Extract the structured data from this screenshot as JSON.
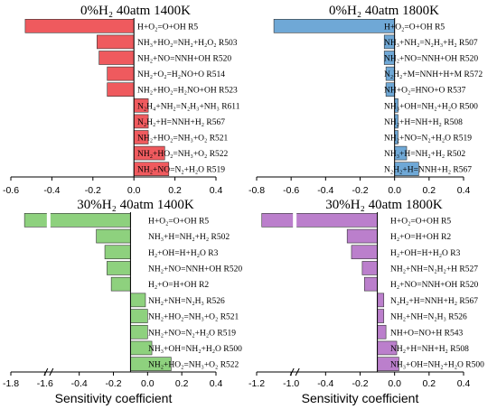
{
  "chart_data": [
    {
      "type": "bar",
      "orientation": "horizontal",
      "title": "0%H₂ 40atm 1400K",
      "color": "#ef5a5e",
      "xlim": [
        -0.6,
        0.4
      ],
      "xticks": [
        "-0.6",
        "-0.4",
        "-0.2",
        "0.0",
        "0.2",
        "0.4"
      ],
      "categories": [
        "H+O₂=O+OH R5",
        "NH₃+HO₂=NH₂+H₂O₂ R503",
        "NH₂+NO=NNH+OH R520",
        "NH₂+O₂=H₂NO+O R514",
        "NH₂+HO₂=H₂NO+OH R523",
        "N₂H₄+NH₂=N₂H₃+NH₃ R611",
        "N₂H₂+H=NNH+H₂ R567",
        "NH₂+HO₂=NH₃+O₂ R521",
        "NH₂+HO₂=NH₃+O₂ R522",
        "NH₂+NO=N₂+H₂O R519"
      ],
      "values": [
        -0.53,
        -0.18,
        -0.17,
        -0.13,
        -0.13,
        0.07,
        0.07,
        0.07,
        0.15,
        0.17
      ]
    },
    {
      "type": "bar",
      "orientation": "horizontal",
      "title": "0%H₂ 40atm 1800K",
      "color": "#6fa8d6",
      "xlim": [
        -0.8,
        0.4
      ],
      "xticks": [
        "-0.8",
        "-0.6",
        "-0.4",
        "-0.2",
        "0.0",
        "0.2",
        "0.4"
      ],
      "categories": [
        "H+O₂=O+OH R5",
        "NH₃+NH₂=N₂H₃+H₂ R507",
        "NH₂+NO=NNH+OH R520",
        "N₂H₂+M=NNH+H+M R572",
        "NH+O₂=HNO+O R537",
        "NH₃+OH=NH₂+H₂O R500",
        "NH₂+H=NH+H₂ R508",
        "NH₂+NO=N₂+H₂O R519",
        "NH₃+H=NH₂+H₂ R502",
        "N₂H₂+H=NNH+H₂ R567"
      ],
      "values": [
        -0.7,
        -0.06,
        -0.06,
        -0.05,
        -0.05,
        0.02,
        0.02,
        0.02,
        0.07,
        0.14
      ]
    },
    {
      "type": "bar",
      "orientation": "horizontal",
      "title": "30%H₂ 40atm 1400K",
      "color": "#8ed17e",
      "xlim": [
        -1.8,
        0.4
      ],
      "axis_break": [
        -1.6,
        -0.4
      ],
      "xticks": [
        "-1.8",
        "-1.6",
        "-0.4",
        "-0.2",
        "0.0",
        "0.2",
        "0.4"
      ],
      "categories": [
        "H+O₂=O+OH R5",
        "NH₃+H=NH₂+H₂ R502",
        "H₂+OH=H+H₂O R3",
        "NH₂+NO=NNH+OH R520",
        "H₂+O=H+OH R2",
        "NH₂+NH=N₂H₃ R526",
        "NH₂+HO₂=NH₃+O₂ R521",
        "NH₂+NO=N₂+H₂O R519",
        "NH₃+OH=NH₂+H₂O R500",
        "NH₂+HO₂=NH₃+O₂ R522"
      ],
      "values": [
        -1.72,
        -0.16,
        -0.12,
        -0.11,
        -0.09,
        0.07,
        0.08,
        0.08,
        0.1,
        0.19
      ]
    },
    {
      "type": "bar",
      "orientation": "horizontal",
      "title": "30%H₂ 40atm 1800K",
      "color": "#bb7fcc",
      "xlim": [
        -1.2,
        0.4
      ],
      "axis_break": [
        -1.0,
        -0.4
      ],
      "xticks": [
        "-1.2",
        "-1.0",
        "-0.4",
        "-0.2",
        "0.0",
        "0.2",
        "0.4"
      ],
      "categories": [
        "H+O₂=O+OH R5",
        "H₂+O=H+OH R2",
        "H₂+OH=H+H₂O R3",
        "NH₂+NH=N₂H₂+H R527",
        "H₂+NO=NNH+OH R520",
        "N₂H₂+H=NNH+H₂ R567",
        "NH₂+NH=N₂H₃ R526",
        "NH+O=NO+H R543",
        "NH₂+H=NH+H₂ R508",
        "NH₃+OH=NH₂+H₂O R500"
      ],
      "values": [
        -1.17,
        -0.14,
        -0.12,
        -0.07,
        -0.06,
        0.03,
        0.03,
        0.04,
        0.09,
        0.1
      ]
    }
  ],
  "xlabel": "Sensitivity coefficient"
}
